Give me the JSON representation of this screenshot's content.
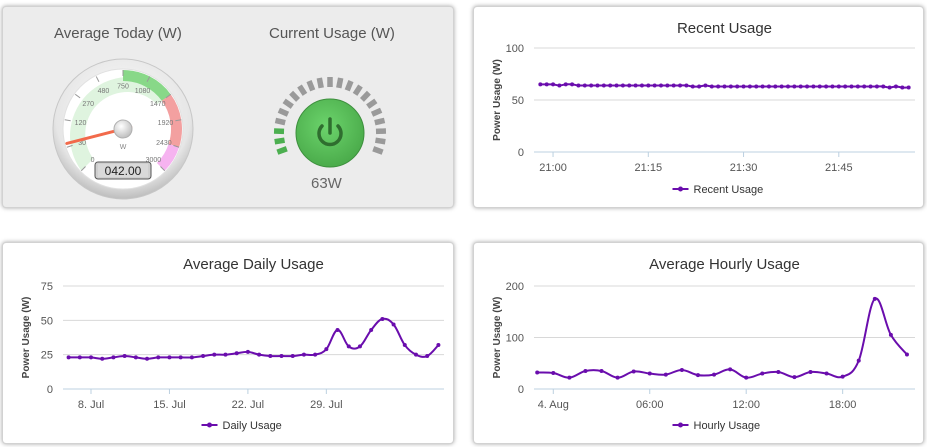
{
  "gauges": {
    "average_today": {
      "title": "Average Today (W)",
      "unit": "W",
      "ticks": [
        "0",
        "30",
        "120",
        "270",
        "480",
        "750",
        "1080",
        "1470",
        "1920",
        "2430",
        "3000"
      ],
      "display": "042.00",
      "value": 42
    },
    "current_usage": {
      "title": "Current Usage (W)",
      "value_text": "63W",
      "icon": "power-icon",
      "level": 0.04
    }
  },
  "colors": {
    "series": "#6a0dad",
    "power_green": "#5cb85c",
    "gauge_green": "#88d888",
    "gauge_red": "#f3a0a0",
    "gauge_pink": "#f6b3f0"
  },
  "chart_data": [
    {
      "id": "recent",
      "type": "line",
      "title": "Recent Usage",
      "ylabel": "Power Usage (W)",
      "xlabel": "",
      "ylim": [
        0,
        100
      ],
      "yticks": [
        0,
        50,
        100
      ],
      "x_ticks": [
        "21:00",
        "21:15",
        "21:30",
        "21:45"
      ],
      "x_tick_minutes": [
        0,
        15,
        30,
        45
      ],
      "x_range_minutes": [
        -3,
        57
      ],
      "legend_position": "bottom-center",
      "series": [
        {
          "name": "Recent Usage",
          "x_minutes": [
            -2,
            -1,
            0,
            1,
            2,
            3,
            4,
            5,
            6,
            7,
            8,
            9,
            10,
            11,
            12,
            13,
            14,
            15,
            16,
            17,
            18,
            19,
            20,
            21,
            22,
            23,
            24,
            25,
            26,
            27,
            28,
            29,
            30,
            31,
            32,
            33,
            34,
            35,
            36,
            37,
            38,
            39,
            40,
            41,
            42,
            43,
            44,
            45,
            46,
            47,
            48,
            49,
            50,
            51,
            52,
            53,
            54,
            55,
            56
          ],
          "values": [
            65,
            65,
            65,
            64,
            65,
            65,
            64,
            64,
            64,
            64,
            64,
            64,
            64,
            64,
            64,
            64,
            64,
            64,
            64,
            64,
            64,
            64,
            64,
            64,
            63,
            63,
            64,
            63,
            63,
            63,
            63,
            63,
            63,
            63,
            63,
            63,
            63,
            63,
            63,
            63,
            63,
            63,
            63,
            63,
            63,
            63,
            63,
            63,
            63,
            63,
            63,
            63,
            63,
            63,
            63,
            62,
            63,
            62,
            62
          ]
        }
      ]
    },
    {
      "id": "daily",
      "type": "line",
      "title": "Average Daily Usage",
      "ylabel": "Power Usage (W)",
      "xlabel": "",
      "ylim": [
        0,
        75
      ],
      "yticks": [
        0,
        25,
        50,
        75
      ],
      "x_ticks": [
        "8. Jul",
        "15. Jul",
        "22. Jul",
        "29. Jul"
      ],
      "x_tick_days": [
        8,
        15,
        22,
        29
      ],
      "x_range_days": [
        5.5,
        39.5
      ],
      "legend_position": "bottom-center",
      "series": [
        {
          "name": "Daily Usage",
          "x_days": [
            6,
            7,
            8,
            9,
            10,
            11,
            12,
            13,
            14,
            15,
            16,
            17,
            18,
            19,
            20,
            21,
            22,
            23,
            24,
            25,
            26,
            27,
            28,
            29,
            30,
            31,
            32,
            33,
            34,
            35,
            36,
            37,
            38,
            39
          ],
          "values": [
            23,
            23,
            23,
            22,
            23,
            24,
            23,
            22,
            23,
            23,
            23,
            23,
            24,
            25,
            25,
            26,
            27,
            25,
            24,
            24,
            24,
            25,
            25,
            29,
            43,
            31,
            31,
            43,
            51,
            47,
            32,
            25,
            24,
            32
          ]
        }
      ]
    },
    {
      "id": "hourly",
      "type": "line",
      "title": "Average Hourly Usage",
      "ylabel": "Power Usage (W)",
      "xlabel": "",
      "ylim": [
        0,
        200
      ],
      "yticks": [
        0,
        100,
        200
      ],
      "x_ticks": [
        "4. Aug",
        "06:00",
        "12:00",
        "18:00"
      ],
      "x_tick_hours": [
        0,
        6,
        12,
        18
      ],
      "x_range_hours": [
        -1.2,
        22.5
      ],
      "legend_position": "bottom-center",
      "series": [
        {
          "name": "Hourly Usage",
          "x_hours": [
            -1,
            0,
            1,
            2,
            3,
            4,
            5,
            6,
            7,
            8,
            9,
            10,
            11,
            12,
            13,
            14,
            15,
            16,
            17,
            18,
            19,
            20,
            21,
            22
          ],
          "values": [
            32,
            31,
            22,
            35,
            35,
            22,
            34,
            30,
            28,
            37,
            27,
            28,
            38,
            22,
            30,
            33,
            23,
            33,
            30,
            24,
            55,
            175,
            105,
            67
          ]
        }
      ]
    }
  ]
}
